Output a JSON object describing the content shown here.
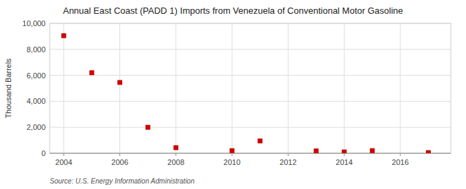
{
  "chart_data": {
    "type": "scatter",
    "title": "Annual East Coast (PADD 1) Imports from Venezuela of Conventional Motor Gasoline",
    "ylabel": "Thousand Barrels",
    "source": "Source: U.S. Energy Information Administration",
    "x": [
      2004,
      2005,
      2006,
      2007,
      2008,
      2010,
      2011,
      2013,
      2014,
      2015,
      2017
    ],
    "values": [
      9050,
      6200,
      5450,
      2000,
      430,
      200,
      950,
      180,
      100,
      200,
      50
    ],
    "color": "#cc0000",
    "marker": "square",
    "xlim": [
      2003.5,
      2017.8
    ],
    "ylim": [
      0,
      10000
    ],
    "xticks": [
      2004,
      2006,
      2008,
      2010,
      2012,
      2014,
      2016
    ],
    "yticks": [
      0,
      {
        "value": 2000,
        "label": "2,000"
      },
      {
        "value": 4000,
        "label": "4,000"
      },
      {
        "value": 6000,
        "label": "6,000"
      },
      {
        "value": 8000,
        "label": "8,000"
      },
      {
        "value": 10000,
        "label": "10,000"
      }
    ],
    "grid": true
  }
}
